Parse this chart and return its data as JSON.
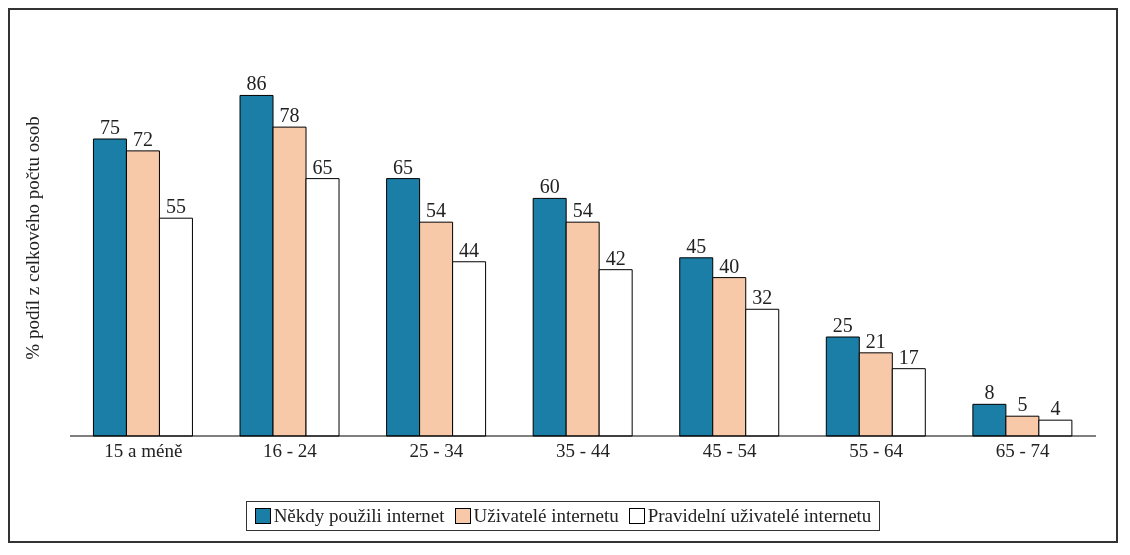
{
  "chart_data": {
    "type": "bar",
    "ylabel": "% podíl z celkového počtu osob",
    "categories": [
      "15 a méně",
      "16 - 24",
      "25 - 34",
      "35 - 44",
      "45 - 54",
      "55 - 64",
      "65 - 74"
    ],
    "series": [
      {
        "name": "Někdy použili internet",
        "color": "#1a7ea6",
        "values": [
          75,
          86,
          65,
          60,
          45,
          25,
          8
        ]
      },
      {
        "name": "Uživatelé internetu",
        "color": "#f8c9a9",
        "values": [
          72,
          78,
          54,
          54,
          40,
          21,
          5
        ]
      },
      {
        "name": "Pravidelní uživatelé internetu",
        "color": "#ffffff",
        "values": [
          55,
          65,
          44,
          42,
          32,
          17,
          4
        ]
      }
    ],
    "data_labels": true,
    "legend": "bottom",
    "grid": false
  }
}
